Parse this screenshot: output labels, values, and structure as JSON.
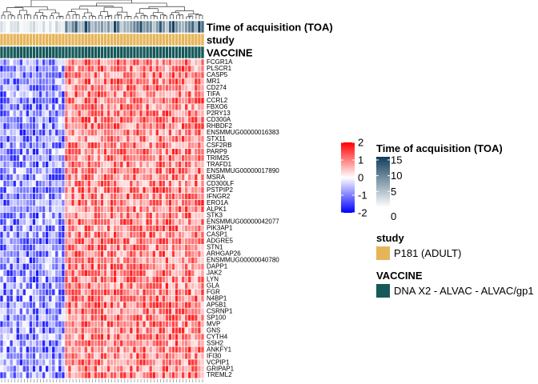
{
  "chart_data": {
    "type": "heatmap",
    "n_columns": 63,
    "control_columns": 20,
    "rows": [
      "FCGR1A",
      "PLSCR1",
      "CASP5",
      "MR1",
      "CD274",
      "TIFA",
      "CCRL2",
      "FBXO6",
      "P2RY13",
      "CD300A",
      "RHBDF2",
      "ENSMMUG00000016383",
      "STX11",
      "CSF2RB",
      "PARP9",
      "TRIM25",
      "TRAFD1",
      "ENSMMUG00000017890",
      "MSRA",
      "CD300LF",
      "PSTPIP2",
      "IFNGR2",
      "ERO1A",
      "ALPK1",
      "STK3",
      "ENSMMUG00000042077",
      "PIK3AP1",
      "CASP1",
      "ADGRE5",
      "STN1",
      "ARHGAP26",
      "ENSMMUG00000040780",
      "DAPP1",
      "JAK2",
      "LYN",
      "GLA",
      "FGR",
      "N4BP1",
      "AP5B1",
      "CSRNP1",
      "SP100",
      "MVP",
      "GNS",
      "CYTH4",
      "SSH2",
      "ANKFY1",
      "IFI30",
      "VCPIP1",
      "GRIPAP1",
      "TREML2"
    ],
    "value_scale": {
      "min": -2,
      "max": 2,
      "ticks": [
        "2",
        "1",
        "0",
        "-1",
        "-2"
      ],
      "colors": [
        "#0000ff",
        "#ffffff",
        "#ff0000"
      ]
    },
    "annotations": [
      {
        "label": "Time of acquisition (TOA)"
      },
      {
        "label": "study"
      },
      {
        "label": "VACCINE"
      }
    ],
    "toa_legend": {
      "title": "Time of acquisition (TOA)",
      "ticks": [
        "15",
        "10",
        "5",
        "0"
      ],
      "range": [
        0,
        16
      ],
      "colors": [
        "#ffffff",
        "#0f3d5c"
      ]
    },
    "study_legend": {
      "title": "study",
      "items": [
        {
          "label": "P181 (ADULT)",
          "color": "#e6b55a"
        }
      ]
    },
    "vaccine_legend": {
      "title": "VACCINE",
      "items": [
        {
          "label": "DNA X2 - ALVAC - ALVAC/gp1",
          "color": "#17595a"
        }
      ]
    }
  }
}
